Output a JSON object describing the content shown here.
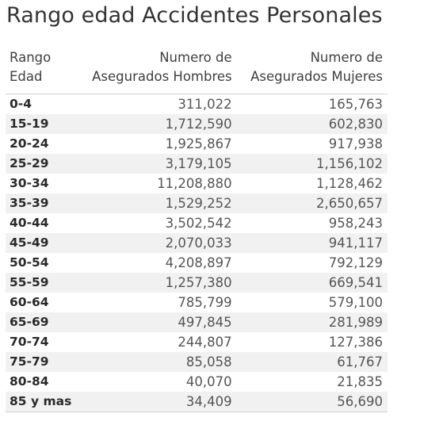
{
  "title": "Rango edad Accidentes Personales",
  "headers": {
    "col1": [
      "Rango",
      "Edad"
    ],
    "col2": [
      "Numero de",
      "Asegurados Hombres"
    ],
    "col3": [
      "Numero de",
      "Asegurados Mujeres"
    ]
  },
  "rows": [
    {
      "rango": "0-4",
      "hombres": "311,022",
      "mujeres": "165,763"
    },
    {
      "rango": "15-19",
      "hombres": "1,712,590",
      "mujeres": "602,830"
    },
    {
      "rango": "20-24",
      "hombres": "1,925,867",
      "mujeres": "917,938"
    },
    {
      "rango": "25-29",
      "hombres": "3,179,105",
      "mujeres": "1,156,102"
    },
    {
      "rango": "30-34",
      "hombres": "11,208,880",
      "mujeres": "1,128,462"
    },
    {
      "rango": "35-39",
      "hombres": "1,529,252",
      "mujeres": "2,650,657"
    },
    {
      "rango": "40-44",
      "hombres": "3,502,542",
      "mujeres": "958,243"
    },
    {
      "rango": "45-49",
      "hombres": "2,070,033",
      "mujeres": "941,117"
    },
    {
      "rango": "50-54",
      "hombres": "4,208,897",
      "mujeres": "792,129"
    },
    {
      "rango": "55-59",
      "hombres": "1,257,380",
      "mujeres": "669,541"
    },
    {
      "rango": "60-64",
      "hombres": "785,799",
      "mujeres": "579,100"
    },
    {
      "rango": "65-69",
      "hombres": "497,845",
      "mujeres": "281,989"
    },
    {
      "rango": "70-74",
      "hombres": "244,807",
      "mujeres": "127,386"
    },
    {
      "rango": "75-79",
      "hombres": "85,058",
      "mujeres": "61,767"
    },
    {
      "rango": "80-84",
      "hombres": "40,070",
      "mujeres": "21,835"
    },
    {
      "rango": "85 y mas",
      "hombres": "34,409",
      "mujeres": "56,690"
    }
  ]
}
